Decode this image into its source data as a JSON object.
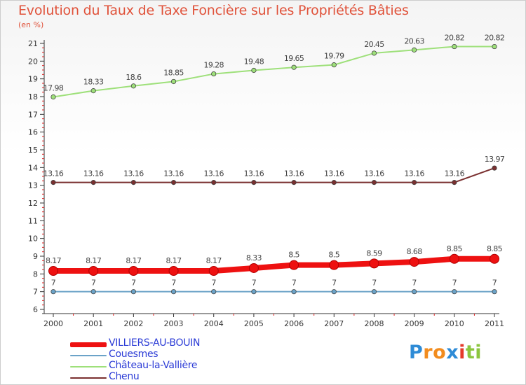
{
  "header": {
    "title": "Evolution du Taux de Taxe Foncière sur les Propriétés Bâties",
    "unit": "(en %)"
  },
  "logo": {
    "letters": [
      "P",
      "r",
      "o",
      "x",
      "i",
      "t",
      "i"
    ],
    "colors": [
      "#2e8bd6",
      "#f28c1e",
      "#f28c1e",
      "#2e8bd6",
      "#e53a2a",
      "#8cc63f",
      "#8cc63f"
    ]
  },
  "chart_data": {
    "type": "line",
    "title": "Evolution du Taux de Taxe Foncière sur les Propriétés Bâties",
    "ylabel": "(en %)",
    "xlabel": "",
    "ylim": [
      6,
      21
    ],
    "yticks": [
      6,
      7,
      8,
      9,
      10,
      11,
      12,
      13,
      14,
      15,
      16,
      17,
      18,
      19,
      20,
      21
    ],
    "grid": false,
    "categories": [
      "2000",
      "2001",
      "2002",
      "2003",
      "2004",
      "2005",
      "2006",
      "2007",
      "2008",
      "2009",
      "2010",
      "2011"
    ],
    "series": [
      {
        "name": "VILLIERS-AU-BOUIN",
        "color": "#ee1111",
        "emphasis": true,
        "values": [
          8.17,
          8.17,
          8.17,
          8.17,
          8.17,
          8.33,
          8.5,
          8.5,
          8.59,
          8.68,
          8.85,
          8.85
        ],
        "labels": [
          "8.17",
          "8.17",
          "8.17",
          "8.17",
          "8.17",
          "8.33",
          "8.5",
          "8.5",
          "8.59",
          "8.68",
          "8.85",
          "8.85"
        ]
      },
      {
        "name": "Couesmes",
        "color": "#6ba3c8",
        "emphasis": false,
        "values": [
          7,
          7,
          7,
          7,
          7,
          7,
          7,
          7,
          7,
          7,
          7,
          7
        ],
        "labels": [
          "7",
          "7",
          "7",
          "7",
          "7",
          "7",
          "7",
          "7",
          "7",
          "7",
          "7",
          "7"
        ]
      },
      {
        "name": "Château-la-Vallière",
        "color": "#9ee07a",
        "emphasis": false,
        "values": [
          17.98,
          18.33,
          18.6,
          18.85,
          19.28,
          19.48,
          19.65,
          19.79,
          20.45,
          20.63,
          20.82,
          20.82
        ],
        "labels": [
          "17.98",
          "18.33",
          "18.6",
          "18.85",
          "19.28",
          "19.48",
          "19.65",
          "19.79",
          "20.45",
          "20.63",
          "20.82",
          "20.82"
        ]
      },
      {
        "name": "Chenu",
        "color": "#7a3030",
        "emphasis": false,
        "values": [
          13.16,
          13.16,
          13.16,
          13.16,
          13.16,
          13.16,
          13.16,
          13.16,
          13.16,
          13.16,
          13.16,
          13.97
        ],
        "labels": [
          "13.16",
          "13.16",
          "13.16",
          "13.16",
          "13.16",
          "13.16",
          "13.16",
          "13.16",
          "13.16",
          "13.16",
          "13.16",
          "13.97"
        ]
      }
    ]
  }
}
